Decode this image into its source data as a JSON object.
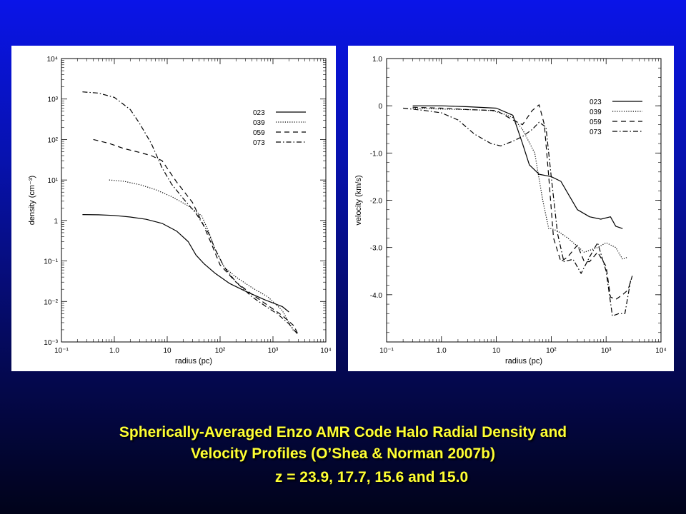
{
  "caption": {
    "line1": "Spherically-Averaged Enzo AMR Code Halo Radial Density and",
    "line2": "Velocity Profiles (O’Shea & Norman 2007b)",
    "line3": "z = 23.9, 17.7, 15.6 and 15.0"
  },
  "colors": {
    "background_top": "#0a14e8",
    "background_bottom": "#01031a",
    "caption": "#ffff33"
  },
  "chart_data": [
    {
      "type": "line",
      "xlabel": "radius (pc)",
      "ylabel": "density (cm⁻³)",
      "xscale": "log",
      "yscale": "log",
      "xlim": [
        0.1,
        10000
      ],
      "ylim": [
        0.001,
        10000
      ],
      "xticks": [
        "10⁻¹",
        "1.0",
        "10",
        "10²",
        "10³",
        "10⁴"
      ],
      "yticks": [
        "10⁻³",
        "10⁻²",
        "10⁻¹",
        "1",
        "10¹",
        "10²",
        "10³",
        "10⁴"
      ],
      "legend_position": "top-right",
      "series": [
        {
          "name": "023",
          "dash": "solid",
          "x": [
            0.25,
            0.5,
            1,
            2,
            4,
            8,
            15,
            25,
            35,
            50,
            80,
            150,
            300,
            700,
            1500,
            2000
          ],
          "y": [
            1.4,
            1.38,
            1.33,
            1.22,
            1.07,
            0.85,
            0.55,
            0.3,
            0.14,
            0.085,
            0.05,
            0.028,
            0.018,
            0.011,
            0.0075,
            0.0055
          ]
        },
        {
          "name": "039",
          "dash": "dotted",
          "x": [
            0.8,
            1.5,
            3,
            6,
            12,
            25,
            45,
            60,
            80,
            120,
            200,
            400,
            800,
            1500,
            2500
          ],
          "y": [
            10,
            9.3,
            7.7,
            5.8,
            3.9,
            2.3,
            1.3,
            0.55,
            0.2,
            0.07,
            0.04,
            0.022,
            0.013,
            0.006,
            0.0018
          ]
        },
        {
          "name": "059",
          "dash": "dashed",
          "x": [
            0.4,
            0.8,
            1.5,
            3,
            5,
            8,
            15,
            30,
            50,
            70,
            100,
            200,
            400,
            800,
            1500,
            2500,
            3000
          ],
          "y": [
            100,
            80,
            60,
            48,
            40,
            30,
            9,
            2.8,
            0.7,
            0.25,
            0.08,
            0.03,
            0.015,
            0.008,
            0.0045,
            0.0025,
            0.0015
          ]
        },
        {
          "name": "073",
          "dash": "dashdot",
          "x": [
            0.25,
            0.5,
            1,
            2,
            3,
            5,
            8,
            12,
            20,
            35,
            60,
            80,
            120,
            200,
            400,
            800,
            1200,
            2000,
            3000
          ],
          "y": [
            1500,
            1400,
            1100,
            550,
            250,
            80,
            20,
            8,
            3.5,
            1.5,
            0.5,
            0.2,
            0.07,
            0.03,
            0.013,
            0.007,
            0.005,
            0.0028,
            0.0015
          ]
        }
      ]
    },
    {
      "type": "line",
      "xlabel": "radius (pc)",
      "ylabel": "velocity (km/s)",
      "xscale": "log",
      "yscale": "linear",
      "xlim": [
        0.1,
        10000
      ],
      "ylim": [
        -5.0,
        1.0
      ],
      "xticks": [
        "10⁻¹",
        "1.0",
        "10",
        "10²",
        "10³",
        "10⁴"
      ],
      "yticks": [
        "-4.0",
        "-3.0",
        "-2.0",
        "-1.0",
        "0",
        "1.0"
      ],
      "legend_position": "top-right",
      "series": [
        {
          "name": "023",
          "dash": "solid",
          "x": [
            0.3,
            1,
            3,
            10,
            20,
            30,
            40,
            60,
            100,
            150,
            200,
            300,
            500,
            800,
            1200,
            1500,
            2000
          ],
          "y": [
            0,
            0,
            -0.02,
            -0.05,
            -0.2,
            -0.8,
            -1.25,
            -1.45,
            -1.5,
            -1.6,
            -1.85,
            -2.2,
            -2.35,
            -2.4,
            -2.35,
            -2.55,
            -2.6
          ]
        },
        {
          "name": "039",
          "dash": "dotted",
          "x": [
            0.3,
            1,
            3,
            8,
            12,
            20,
            30,
            50,
            70,
            90,
            100,
            130,
            200,
            400,
            700,
            1000,
            1500,
            2000,
            2500
          ],
          "y": [
            -0.05,
            -0.07,
            -0.08,
            -0.1,
            -0.15,
            -0.25,
            -0.5,
            -1.0,
            -2.0,
            -2.6,
            -2.6,
            -2.65,
            -2.8,
            -3.1,
            -3.0,
            -2.9,
            -3.0,
            -3.25,
            -3.2
          ]
        },
        {
          "name": "059",
          "dash": "dashed",
          "x": [
            0.3,
            1,
            3,
            10,
            20,
            30,
            45,
            60,
            75,
            90,
            110,
            150,
            200,
            300,
            400,
            500,
            700,
            1000,
            1200,
            1500,
            2000,
            2500,
            3000
          ],
          "y": [
            -0.03,
            -0.05,
            -0.08,
            -0.1,
            -0.3,
            -0.4,
            -0.1,
            0.02,
            -0.4,
            -1.5,
            -2.8,
            -3.3,
            -3.2,
            -2.95,
            -3.3,
            -3.3,
            -3.1,
            -3.4,
            -4.05,
            -4.1,
            -4.0,
            -3.9,
            -3.6
          ]
        },
        {
          "name": "073",
          "dash": "dashdot",
          "x": [
            0.2,
            0.5,
            1,
            2,
            4,
            8,
            12,
            20,
            30,
            45,
            60,
            80,
            100,
            130,
            170,
            250,
            350,
            500,
            700,
            1000,
            1300,
            1700,
            2200,
            2800
          ],
          "y": [
            -0.05,
            -0.1,
            -0.15,
            -0.3,
            -0.6,
            -0.8,
            -0.85,
            -0.75,
            -0.65,
            -0.5,
            -0.35,
            -0.45,
            -1.5,
            -2.7,
            -3.3,
            -3.25,
            -3.55,
            -3.2,
            -2.9,
            -3.5,
            -4.45,
            -4.4,
            -4.4,
            -3.7
          ]
        }
      ]
    }
  ]
}
